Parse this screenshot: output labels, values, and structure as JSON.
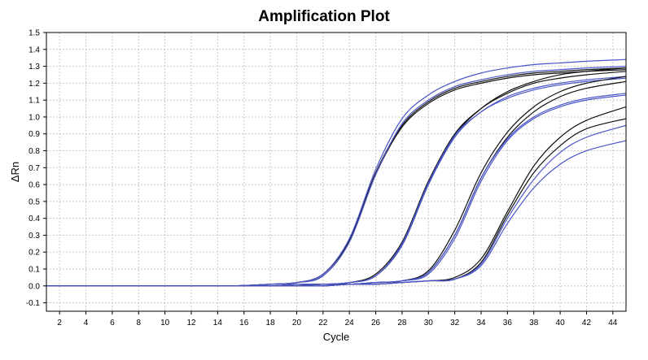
{
  "chart_data": {
    "type": "line",
    "title": "Amplification Plot",
    "xlabel": "Cycle",
    "ylabel": "ΔRn",
    "xlim": [
      1,
      45
    ],
    "ylim": [
      -0.15,
      1.5
    ],
    "x_ticks": [
      2,
      4,
      6,
      8,
      10,
      12,
      14,
      16,
      18,
      20,
      22,
      24,
      26,
      28,
      30,
      32,
      34,
      36,
      38,
      40,
      42,
      44
    ],
    "y_ticks": [
      -0.1,
      0.0,
      0.1,
      0.2,
      0.3,
      0.4,
      0.5,
      0.6,
      0.7,
      0.8,
      0.9,
      1.0,
      1.1,
      1.2,
      1.3,
      1.4,
      1.5
    ],
    "y_tick_labels": [
      "-0.1",
      "0.0",
      "0.1",
      "0.2",
      "0.3",
      "0.4",
      "0.5",
      "0.6",
      "0.7",
      "0.8",
      "0.9",
      "1.0",
      "1.1",
      "1.2",
      "1.3",
      "1.4",
      "1.5"
    ],
    "grid": true,
    "colors": {
      "black": "#111111",
      "blue": "#4a56c8",
      "grid": "#c8c8c8"
    },
    "series": [
      {
        "color": "black",
        "x": [
          1,
          5,
          10,
          15,
          18,
          20,
          22,
          24,
          26,
          28,
          30,
          32,
          34,
          36,
          38,
          40,
          42,
          45
        ],
        "y": [
          0.0,
          0.0,
          0.0,
          0.0,
          0.01,
          0.02,
          0.07,
          0.27,
          0.67,
          0.95,
          1.09,
          1.17,
          1.21,
          1.24,
          1.26,
          1.27,
          1.28,
          1.29
        ]
      },
      {
        "color": "black",
        "x": [
          1,
          5,
          10,
          15,
          18,
          20,
          22,
          24,
          26,
          28,
          30,
          32,
          34,
          36,
          38,
          40,
          42,
          45
        ],
        "y": [
          0.0,
          0.0,
          0.0,
          0.0,
          0.01,
          0.02,
          0.06,
          0.26,
          0.66,
          0.94,
          1.08,
          1.16,
          1.2,
          1.23,
          1.25,
          1.26,
          1.27,
          1.28
        ]
      },
      {
        "color": "blue",
        "x": [
          1,
          5,
          10,
          15,
          18,
          20,
          22,
          24,
          26,
          28,
          30,
          32,
          34,
          36,
          38,
          40,
          42,
          45
        ],
        "y": [
          0.0,
          0.0,
          0.0,
          0.0,
          0.01,
          0.02,
          0.07,
          0.28,
          0.69,
          0.99,
          1.13,
          1.21,
          1.26,
          1.29,
          1.31,
          1.32,
          1.33,
          1.34
        ]
      },
      {
        "color": "blue",
        "x": [
          1,
          5,
          10,
          15,
          18,
          20,
          22,
          24,
          26,
          28,
          30,
          32,
          34,
          36,
          38,
          40,
          42,
          45
        ],
        "y": [
          0.0,
          0.0,
          0.0,
          0.0,
          0.01,
          0.02,
          0.06,
          0.26,
          0.66,
          0.96,
          1.1,
          1.18,
          1.22,
          1.25,
          1.27,
          1.28,
          1.29,
          1.3
        ]
      },
      {
        "color": "black",
        "x": [
          1,
          5,
          10,
          15,
          18,
          20,
          22,
          24,
          26,
          28,
          30,
          32,
          34,
          36,
          38,
          40,
          42,
          45
        ],
        "y": [
          0.0,
          0.0,
          0.0,
          0.0,
          0.0,
          0.01,
          0.01,
          0.02,
          0.07,
          0.26,
          0.62,
          0.9,
          1.05,
          1.14,
          1.2,
          1.23,
          1.25,
          1.27
        ]
      },
      {
        "color": "black",
        "x": [
          1,
          5,
          10,
          15,
          18,
          20,
          22,
          24,
          26,
          28,
          30,
          32,
          34,
          36,
          38,
          40,
          42,
          45
        ],
        "y": [
          0.0,
          0.0,
          0.0,
          0.0,
          0.0,
          0.01,
          0.01,
          0.02,
          0.06,
          0.24,
          0.6,
          0.89,
          1.05,
          1.15,
          1.21,
          1.25,
          1.27,
          1.29
        ]
      },
      {
        "color": "blue",
        "x": [
          1,
          5,
          10,
          15,
          18,
          20,
          22,
          24,
          26,
          28,
          30,
          32,
          34,
          36,
          38,
          40,
          42,
          45
        ],
        "y": [
          0.0,
          0.0,
          0.0,
          0.0,
          0.0,
          0.01,
          0.01,
          0.02,
          0.06,
          0.25,
          0.61,
          0.89,
          1.03,
          1.12,
          1.17,
          1.2,
          1.22,
          1.24
        ]
      },
      {
        "color": "blue",
        "x": [
          1,
          5,
          10,
          15,
          18,
          20,
          22,
          24,
          26,
          28,
          30,
          32,
          34,
          36,
          38,
          40,
          42,
          45
        ],
        "y": [
          0.0,
          0.0,
          0.0,
          0.0,
          0.0,
          0.01,
          0.01,
          0.02,
          0.06,
          0.24,
          0.6,
          0.88,
          1.03,
          1.11,
          1.16,
          1.19,
          1.21,
          1.23
        ]
      },
      {
        "color": "black",
        "x": [
          1,
          5,
          10,
          15,
          18,
          20,
          22,
          24,
          26,
          28,
          30,
          32,
          34,
          36,
          38,
          40,
          42,
          45
        ],
        "y": [
          0.0,
          0.0,
          0.0,
          0.0,
          0.0,
          0.0,
          0.01,
          0.01,
          0.02,
          0.03,
          0.09,
          0.33,
          0.67,
          0.91,
          1.06,
          1.15,
          1.2,
          1.24
        ]
      },
      {
        "color": "black",
        "x": [
          1,
          5,
          10,
          15,
          18,
          20,
          22,
          24,
          26,
          28,
          30,
          32,
          34,
          36,
          38,
          40,
          42,
          45
        ],
        "y": [
          0.0,
          0.0,
          0.0,
          0.0,
          0.0,
          0.0,
          0.01,
          0.01,
          0.02,
          0.03,
          0.08,
          0.3,
          0.64,
          0.88,
          1.03,
          1.12,
          1.17,
          1.21
        ]
      },
      {
        "color": "blue",
        "x": [
          1,
          5,
          10,
          15,
          18,
          20,
          22,
          24,
          26,
          28,
          30,
          32,
          34,
          36,
          38,
          40,
          42,
          45
        ],
        "y": [
          0.0,
          0.0,
          0.0,
          0.0,
          0.0,
          0.0,
          0.01,
          0.01,
          0.02,
          0.03,
          0.08,
          0.3,
          0.64,
          0.87,
          1.0,
          1.07,
          1.11,
          1.14
        ]
      },
      {
        "color": "blue",
        "x": [
          1,
          5,
          10,
          15,
          18,
          20,
          22,
          24,
          26,
          28,
          30,
          32,
          34,
          36,
          38,
          40,
          42,
          45
        ],
        "y": [
          0.0,
          0.0,
          0.0,
          0.0,
          0.0,
          0.0,
          0.01,
          0.01,
          0.02,
          0.03,
          0.07,
          0.28,
          0.62,
          0.86,
          0.99,
          1.06,
          1.1,
          1.13
        ]
      },
      {
        "color": "black",
        "x": [
          1,
          5,
          10,
          15,
          18,
          20,
          22,
          24,
          26,
          28,
          30,
          32,
          34,
          36,
          38,
          40,
          42,
          45
        ],
        "y": [
          0.0,
          0.0,
          0.0,
          0.0,
          0.0,
          0.0,
          0.0,
          0.01,
          0.01,
          0.02,
          0.03,
          0.05,
          0.16,
          0.44,
          0.71,
          0.88,
          0.98,
          1.06
        ]
      },
      {
        "color": "black",
        "x": [
          1,
          5,
          10,
          15,
          18,
          20,
          22,
          24,
          26,
          28,
          30,
          32,
          34,
          36,
          38,
          40,
          42,
          45
        ],
        "y": [
          0.0,
          0.0,
          0.0,
          0.0,
          0.0,
          0.0,
          0.0,
          0.01,
          0.01,
          0.02,
          0.03,
          0.04,
          0.14,
          0.42,
          0.67,
          0.83,
          0.93,
          0.99
        ]
      },
      {
        "color": "blue",
        "x": [
          1,
          5,
          10,
          15,
          18,
          20,
          22,
          24,
          26,
          28,
          30,
          32,
          34,
          36,
          38,
          40,
          42,
          45
        ],
        "y": [
          0.0,
          0.0,
          0.0,
          0.0,
          0.0,
          0.0,
          0.0,
          0.01,
          0.01,
          0.02,
          0.03,
          0.04,
          0.13,
          0.4,
          0.63,
          0.79,
          0.88,
          0.95
        ]
      },
      {
        "color": "blue",
        "x": [
          1,
          5,
          10,
          15,
          18,
          20,
          22,
          24,
          26,
          28,
          30,
          32,
          34,
          36,
          38,
          40,
          42,
          45
        ],
        "y": [
          0.0,
          0.0,
          0.0,
          0.0,
          0.0,
          0.0,
          0.0,
          0.01,
          0.01,
          0.02,
          0.03,
          0.04,
          0.12,
          0.37,
          0.58,
          0.72,
          0.8,
          0.86
        ]
      }
    ]
  }
}
